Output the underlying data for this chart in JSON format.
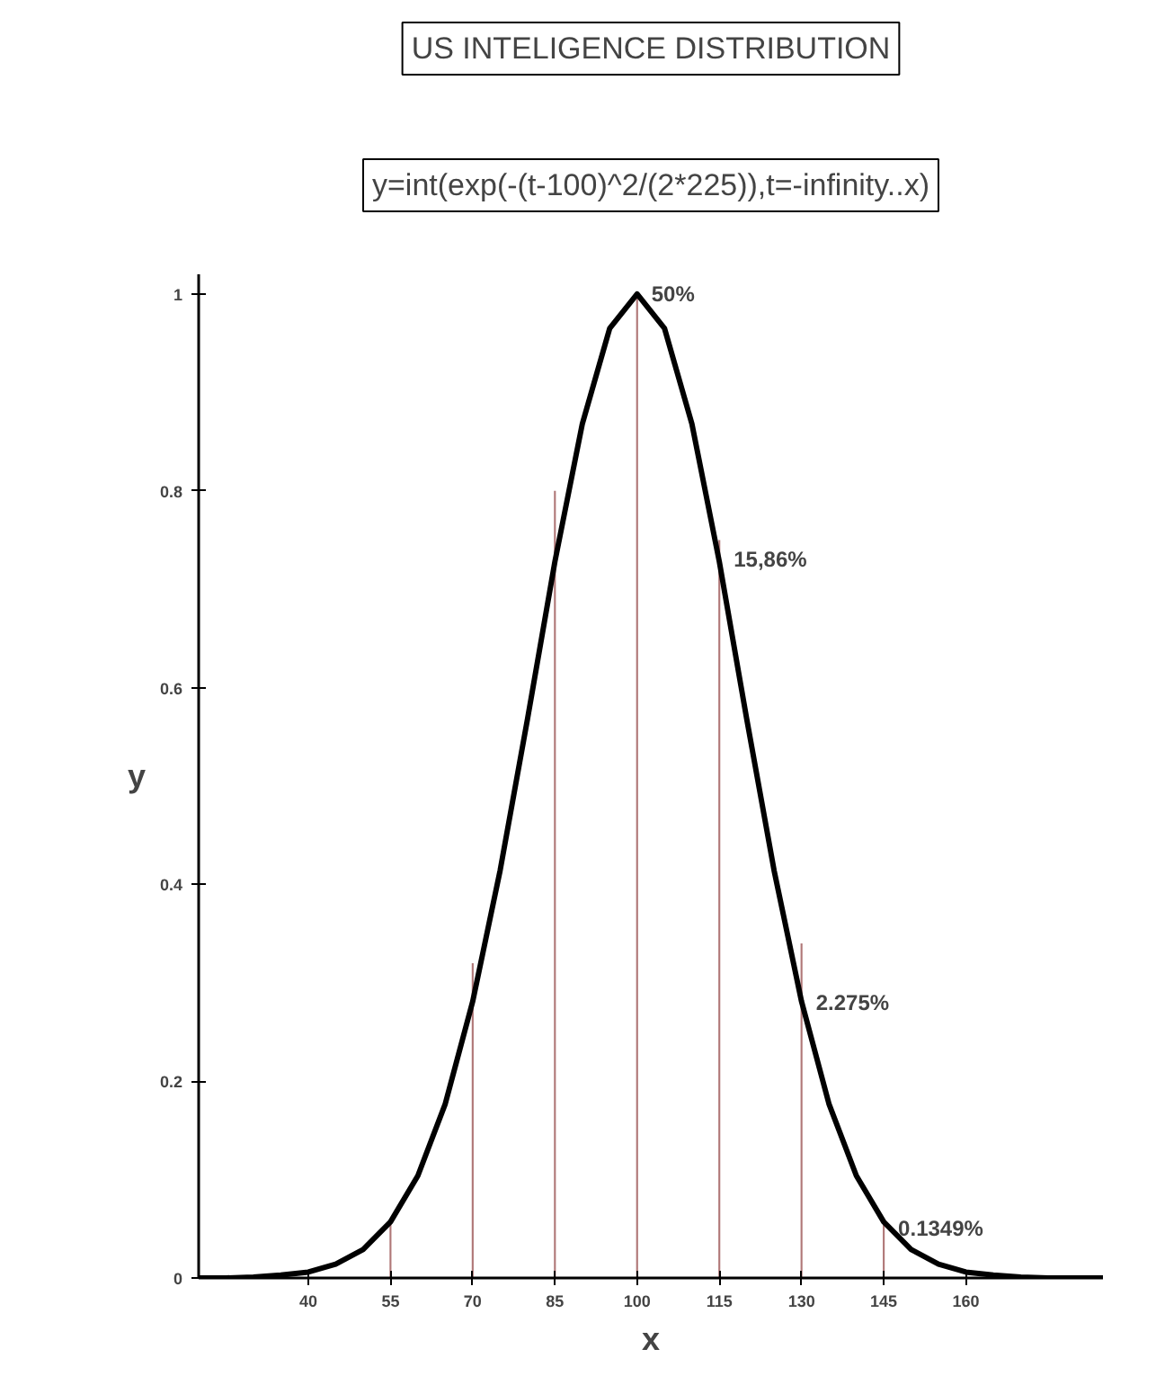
{
  "chart_data": {
    "type": "line",
    "title": "US INTELIGENCE DISTRIBUTION",
    "subtitle": "y=int(exp(-(t-100)^2/(2*225)),t=-infinity..x)",
    "xlabel": "x",
    "ylabel": "y",
    "xlim": [
      20,
      185
    ],
    "ylim": [
      0,
      1.02
    ],
    "xticks": [
      40,
      55,
      70,
      85,
      100,
      115,
      130,
      145,
      160
    ],
    "yticks": [
      0,
      0.2,
      0.4,
      0.6,
      0.8,
      1
    ],
    "series": [
      {
        "color": "#000000",
        "x": [
          20,
          25,
          30,
          35,
          40,
          45,
          50,
          55,
          60,
          65,
          70,
          75,
          80,
          85,
          90,
          95,
          100,
          105,
          110,
          115,
          120,
          125,
          130,
          135,
          140,
          145,
          150,
          155,
          160,
          165,
          170,
          175,
          180,
          185
        ],
        "values": [
          0,
          0,
          0.001,
          0.003,
          0.006,
          0.014,
          0.029,
          0.057,
          0.104,
          0.177,
          0.281,
          0.414,
          0.568,
          0.728,
          0.868,
          0.965,
          1,
          0.965,
          0.868,
          0.728,
          0.568,
          0.414,
          0.281,
          0.177,
          0.104,
          0.057,
          0.029,
          0.014,
          0.006,
          0.003,
          0.001,
          0,
          0,
          0
        ]
      },
      {
        "type": "bar",
        "color": "#b07878",
        "x": [
          55,
          70,
          85,
          100,
          115,
          130,
          145
        ],
        "values": [
          0.06,
          0.32,
          0.8,
          1,
          0.75,
          0.34,
          0.06
        ]
      }
    ],
    "annotations": [
      {
        "text": "50%",
        "x": 100,
        "y": 1
      },
      {
        "text": "15,86%",
        "x": 115,
        "y": 0.73
      },
      {
        "text": "2.275%",
        "x": 130,
        "y": 0.28
      },
      {
        "text": "0.1349%",
        "x": 145,
        "y": 0.05
      }
    ],
    "grid": false,
    "marker": "none",
    "line_style": "solid"
  }
}
